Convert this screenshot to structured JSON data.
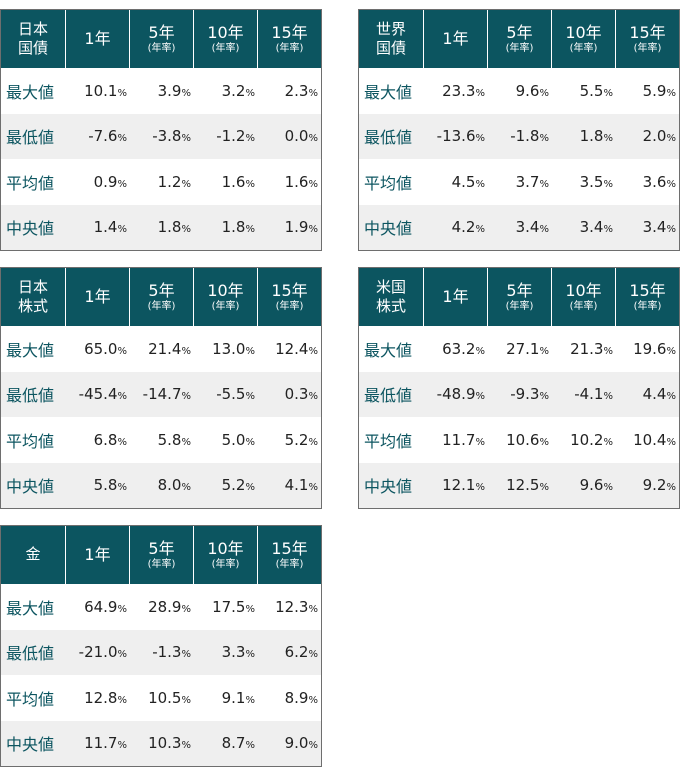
{
  "col_headers": {
    "y1": "1年",
    "y5": "5年",
    "y10": "10年",
    "y15": "15年",
    "annual": "(年率)"
  },
  "row_labels": [
    "最大値",
    "最低値",
    "平均値",
    "中央値"
  ],
  "percent": "%",
  "tables": [
    {
      "title_line1": "日本",
      "title_line2": "国債",
      "rows": [
        [
          "10.1",
          "3.9",
          "3.2",
          "2.3"
        ],
        [
          "-7.6",
          "-3.8",
          "-1.2",
          "0.0"
        ],
        [
          "0.9",
          "1.2",
          "1.6",
          "1.6"
        ],
        [
          "1.4",
          "1.8",
          "1.8",
          "1.9"
        ]
      ]
    },
    {
      "title_line1": "世界",
      "title_line2": "国債",
      "rows": [
        [
          "23.3",
          "9.6",
          "5.5",
          "5.9"
        ],
        [
          "-13.6",
          "-1.8",
          "1.8",
          "2.0"
        ],
        [
          "4.5",
          "3.7",
          "3.5",
          "3.6"
        ],
        [
          "4.2",
          "3.4",
          "3.4",
          "3.4"
        ]
      ]
    },
    {
      "title_line1": "日本",
      "title_line2": "株式",
      "rows": [
        [
          "65.0",
          "21.4",
          "13.0",
          "12.4"
        ],
        [
          "-45.4",
          "-14.7",
          "-5.5",
          "0.3"
        ],
        [
          "6.8",
          "5.8",
          "5.0",
          "5.2"
        ],
        [
          "5.8",
          "8.0",
          "5.2",
          "4.1"
        ]
      ]
    },
    {
      "title_line1": "米国",
      "title_line2": "株式",
      "rows": [
        [
          "63.2",
          "27.1",
          "21.3",
          "19.6"
        ],
        [
          "-48.9",
          "-9.3",
          "-4.1",
          "4.4"
        ],
        [
          "11.7",
          "10.6",
          "10.2",
          "10.4"
        ],
        [
          "12.1",
          "12.5",
          "9.6",
          "9.2"
        ]
      ]
    },
    {
      "title_line1": "金",
      "title_line2": "",
      "rows": [
        [
          "64.9",
          "28.9",
          "17.5",
          "12.3"
        ],
        [
          "-21.0",
          "-1.3",
          "3.3",
          "6.2"
        ],
        [
          "12.8",
          "10.5",
          "9.1",
          "8.9"
        ],
        [
          "11.7",
          "10.3",
          "8.7",
          "9.0"
        ]
      ]
    }
  ],
  "colors": {
    "header_bg": "#0c5560",
    "label_text": "#0c5560",
    "alt_row_bg": "#efefef",
    "border": "#6e6e6e"
  }
}
